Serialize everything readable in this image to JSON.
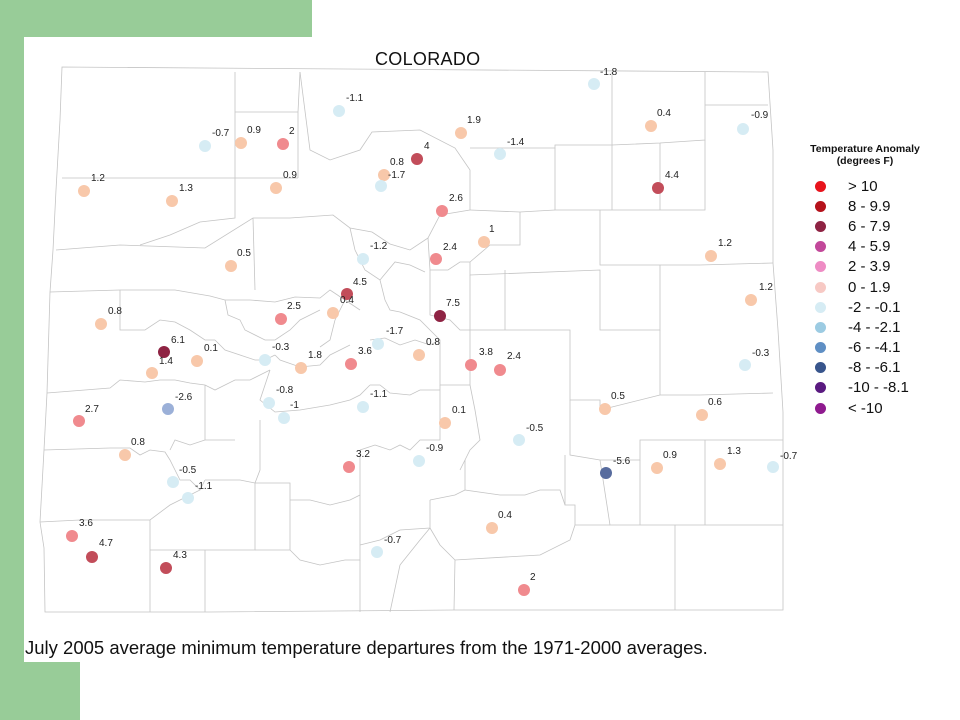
{
  "title": "COLORADO",
  "caption": "July 2005 average minimum temperature departures from the 1971-2000 averages.",
  "legend": {
    "title_line1": "Temperature Anomaly",
    "title_line2": "(degrees F)",
    "items": [
      {
        "label": "> 10",
        "color": "#e8141c"
      },
      {
        "label": "8 - 9.9",
        "color": "#b5121b"
      },
      {
        "label": "6 - 7.9",
        "color": "#8e2343"
      },
      {
        "label": "4 - 5.9",
        "color": "#c2489a"
      },
      {
        "label": "2 - 3.9",
        "color": "#ee8cc4"
      },
      {
        "label": "0 - 1.9",
        "color": "#f7c9c4"
      },
      {
        "label": "-2 - -0.1",
        "color": "#d6ecf4"
      },
      {
        "label": "-4 - -2.1",
        "color": "#9ccbe2"
      },
      {
        "label": "-6 - -4.1",
        "color": "#5f8fc4"
      },
      {
        "label": "-8 - -6.1",
        "color": "#38558c"
      },
      {
        "label": "-10 - -8.1",
        "color": "#5a1a80"
      },
      {
        "label": "< -10",
        "color": "#8f1a8f"
      }
    ]
  },
  "stations": [
    {
      "label": "-1.8",
      "value": -1.8
    },
    {
      "label": "-1.1",
      "value": -1.1
    },
    {
      "label": "-0.7",
      "value": -0.7
    },
    {
      "label": "0.9",
      "value": 0.9
    },
    {
      "label": "2",
      "value": 2
    },
    {
      "label": "4",
      "value": 4
    },
    {
      "label": "1.9",
      "value": 1.9
    },
    {
      "label": "-1.4",
      "value": -1.4
    },
    {
      "label": "0.4",
      "value": 0.4
    },
    {
      "label": "-0.9",
      "value": -0.9
    },
    {
      "label": "0.8",
      "value": 0.8
    },
    {
      "label": "-1.7",
      "value": -1.7
    },
    {
      "label": "4.4",
      "value": 4.4
    },
    {
      "label": "1.2",
      "value": 1.2
    },
    {
      "label": "1.3",
      "value": 1.3
    },
    {
      "label": "0.9",
      "value": 0.9
    },
    {
      "label": "2.6",
      "value": 2.6
    },
    {
      "label": "1",
      "value": 1
    },
    {
      "label": "2.4",
      "value": 2.4
    },
    {
      "label": "-1.2",
      "value": -1.2
    },
    {
      "label": "0.5",
      "value": 0.5
    },
    {
      "label": "1.2",
      "value": 1.2
    },
    {
      "label": "4.5",
      "value": 4.5
    },
    {
      "label": "0.4",
      "value": 0.4
    },
    {
      "label": "1.2",
      "value": 1.2
    },
    {
      "label": "7.5",
      "value": 7.5
    },
    {
      "label": "0.8",
      "value": 0.8
    },
    {
      "label": "2.5",
      "value": 2.5
    },
    {
      "label": "-1.7",
      "value": -1.7
    },
    {
      "label": "6.1",
      "value": 6.1
    },
    {
      "label": "1.4",
      "value": 1.4
    },
    {
      "label": "0.1",
      "value": 0.1
    },
    {
      "label": "-0.3",
      "value": -0.3
    },
    {
      "label": "1.8",
      "value": 1.8
    },
    {
      "label": "3.6",
      "value": 3.6
    },
    {
      "label": "0.8",
      "value": 0.8
    },
    {
      "label": "3.8",
      "value": 3.8
    },
    {
      "label": "2.4",
      "value": 2.4
    },
    {
      "label": "-0.3",
      "value": -0.3
    },
    {
      "label": "-2.6",
      "value": -2.6
    },
    {
      "label": "-0.8",
      "value": -0.8
    },
    {
      "label": "-1",
      "value": -1
    },
    {
      "label": "-1.1",
      "value": -1.1
    },
    {
      "label": "0.1",
      "value": 0.1
    },
    {
      "label": "0.5",
      "value": 0.5
    },
    {
      "label": "0.6",
      "value": 0.6
    },
    {
      "label": "2.7",
      "value": 2.7
    },
    {
      "label": "-0.5",
      "value": -0.5
    },
    {
      "label": "0.8",
      "value": 0.8
    },
    {
      "label": "-0.9",
      "value": -0.9
    },
    {
      "label": "3.2",
      "value": 3.2
    },
    {
      "label": "-5.6",
      "value": -5.6
    },
    {
      "label": "0.9",
      "value": 0.9
    },
    {
      "label": "1.3",
      "value": 1.3
    },
    {
      "label": "-0.7",
      "value": -0.7
    },
    {
      "label": "-0.5",
      "value": -0.5
    },
    {
      "label": "-1.1",
      "value": -1.1
    },
    {
      "label": "0.4",
      "value": 0.4
    },
    {
      "label": "3.6",
      "value": 3.6
    },
    {
      "label": "4.7",
      "value": 4.7
    },
    {
      "label": "4.3",
      "value": 4.3
    },
    {
      "label": "-0.7",
      "value": -0.7
    },
    {
      "label": "2",
      "value": 2
    }
  ]
}
